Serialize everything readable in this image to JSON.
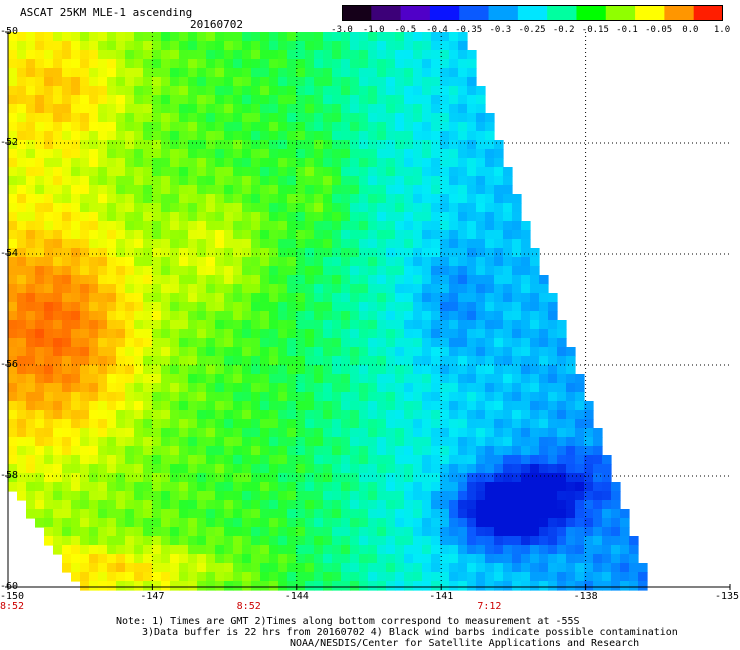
{
  "header": {
    "title": "ASCAT 25KM MLE-1 ascending",
    "date": "20160702"
  },
  "colorbar": {
    "labels": [
      "-3.0",
      "-1.0",
      "-0.5",
      "-0.4",
      "-0.35",
      "-0.3",
      "-0.25",
      "-0.2",
      "-0.15",
      "-0.1",
      "-0.05",
      "0.0",
      "1.0"
    ],
    "colors": [
      "#150019",
      "#3c0078",
      "#5000c8",
      "#0a14ff",
      "#0a5aff",
      "#00a0ff",
      "#00e6ff",
      "#00ffa0",
      "#00ff00",
      "#90ff00",
      "#ffff00",
      "#ff9600",
      "#ff1e00"
    ]
  },
  "map": {
    "lon_labels": [
      "-150",
      "-147",
      "-144",
      "-141",
      "-138",
      "-135"
    ],
    "lat_labels": [
      "-50",
      "-52",
      "-54",
      "-56",
      "-58",
      "-60"
    ],
    "lon_range": [
      -150,
      -135
    ],
    "lat_range": [
      -50,
      -60
    ],
    "time_labels": [
      {
        "text": "8:52",
        "lon": -150
      },
      {
        "text": "8:52",
        "lon": -145
      },
      {
        "text": "7:12",
        "lon": -140
      }
    ],
    "time_label_color": "#cc0000",
    "features": {
      "orange_core": "west around -150 to -147, -53.5 to -56.5",
      "blue_core": "around -141 to -138.5, -58 to -59.5"
    }
  },
  "notes": {
    "line1": "Note: 1) Times are GMT 2)Times along bottom correspond to measurement at -55S",
    "line2": "3)Data buffer is 22 hrs from 20160702 4) Black wind barbs indicate possible contamination",
    "line3": "NOAA/NESDIS/Center for Satellite Applications and Research"
  }
}
